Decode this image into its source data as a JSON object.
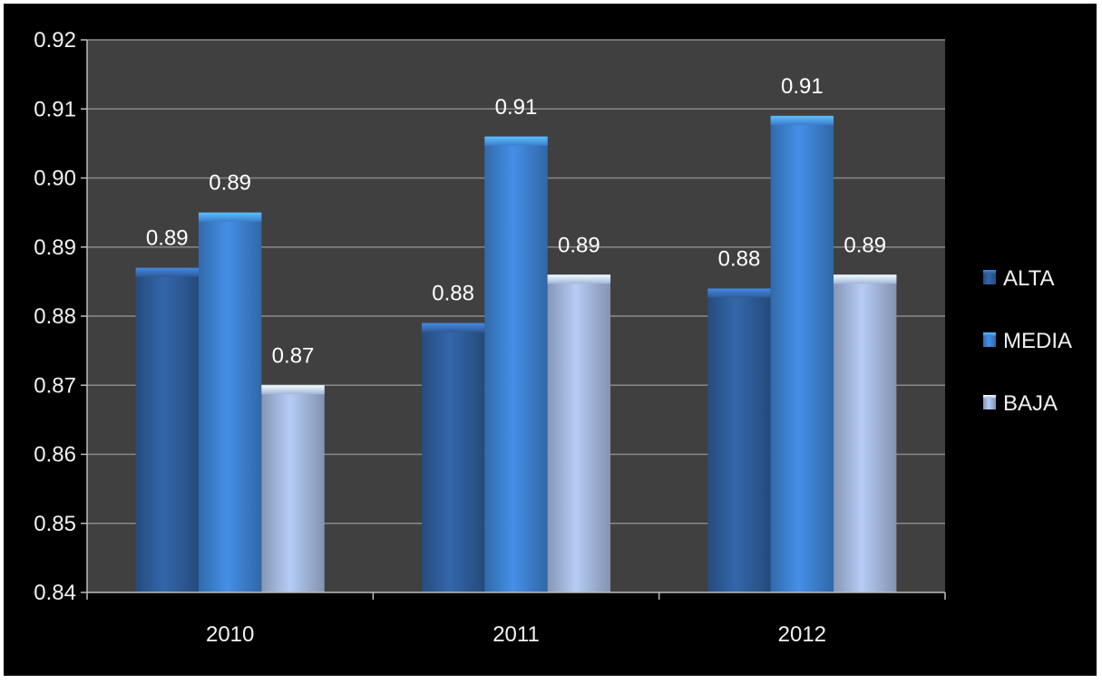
{
  "chart_data": {
    "type": "bar",
    "categories": [
      "2010",
      "2011",
      "2012"
    ],
    "series": [
      {
        "name": "ALTA",
        "values": [
          0.887,
          0.879,
          0.884
        ],
        "labels": [
          "0.89",
          "0.88",
          "0.88"
        ],
        "color": "#2f5f9e"
      },
      {
        "name": "MEDIA",
        "values": [
          0.895,
          0.906,
          0.909
        ],
        "labels": [
          "0.89",
          "0.91",
          "0.91"
        ],
        "color": "#3f84d6"
      },
      {
        "name": "BAJA",
        "values": [
          0.87,
          0.886,
          0.886
        ],
        "labels": [
          "0.87",
          "0.89",
          "0.89"
        ],
        "color": "#a8bde3"
      }
    ],
    "ylim": [
      0.84,
      0.92
    ],
    "yticks": [
      "0.84",
      "0.85",
      "0.86",
      "0.87",
      "0.88",
      "0.89",
      "0.90",
      "0.91",
      "0.92"
    ],
    "grid": true,
    "legend_position": "right",
    "plot_background": "#404040",
    "page_background": "#000000",
    "text_color": "#f2f2f2"
  }
}
